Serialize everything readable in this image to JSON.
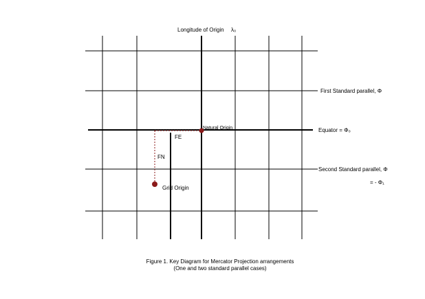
{
  "labels": {
    "longitude_of_origin": "Longitude of Origin",
    "lambda_zero": "λ₀",
    "first_standard_parallel": "First Standard parallel, Φ",
    "equator": "Equator = Φ₀",
    "second_standard_parallel": "Second Standard parallel, Φ",
    "minus_phi": "= - Φ₁",
    "natural_origin": "Natural Origin",
    "fe": "FE",
    "fn": "FN",
    "grid_origin": "Grid Origin"
  },
  "caption": {
    "line1": "Figure 1. Key Diagram for Mercator Projection arrangements",
    "line2": "(One and two standard parallel cases)"
  },
  "colors": {
    "grid": "#000000",
    "origin_point": "#8b1a1a",
    "offset_lines": "#8b1a1a"
  }
}
